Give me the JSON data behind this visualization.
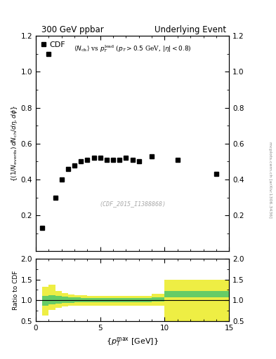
{
  "title_left": "300 GeV ppbar",
  "title_right": "Underlying Event",
  "watermark": "(CDF_2015_I1388868)",
  "side_label": "mcplots.cern.ch [arXiv:1306.3436]",
  "ylabel": "((1/N_{events}) dN_{ch}/dη, dϕ)",
  "ratio_ylabel": "Ratio to CDF",
  "data_x": [
    0.5,
    1.0,
    1.5,
    2.0,
    2.5,
    3.0,
    3.5,
    4.0,
    4.5,
    5.0,
    5.5,
    6.0,
    6.5,
    7.0,
    7.5,
    8.0,
    9.0,
    11.0,
    14.0
  ],
  "data_y": [
    0.13,
    1.1,
    0.3,
    0.4,
    0.46,
    0.48,
    0.5,
    0.51,
    0.52,
    0.52,
    0.51,
    0.51,
    0.51,
    0.52,
    0.51,
    0.5,
    0.53,
    0.51,
    0.43
  ],
  "ylim": [
    0,
    1.2
  ],
  "xlim": [
    0,
    15
  ],
  "ratio_ylim": [
    0.5,
    2.0
  ],
  "green_band_x": [
    0.5,
    1.0,
    1.5,
    2.0,
    2.5,
    3.0,
    3.5,
    4.0,
    4.5,
    5.0,
    5.5,
    6.0,
    6.5,
    7.0,
    7.5,
    8.0,
    9.0,
    10.0,
    15.0
  ],
  "green_band_lo": [
    0.87,
    0.91,
    0.93,
    0.94,
    0.94,
    0.95,
    0.95,
    0.96,
    0.96,
    0.96,
    0.96,
    0.96,
    0.96,
    0.96,
    0.96,
    0.96,
    0.97,
    1.07,
    1.07
  ],
  "green_band_hi": [
    1.1,
    1.12,
    1.1,
    1.09,
    1.08,
    1.07,
    1.06,
    1.06,
    1.05,
    1.05,
    1.05,
    1.05,
    1.05,
    1.05,
    1.05,
    1.06,
    1.08,
    1.22,
    1.22
  ],
  "yellow_band_x": [
    0.5,
    1.0,
    1.5,
    2.0,
    2.5,
    3.0,
    3.5,
    4.0,
    4.5,
    5.0,
    5.5,
    6.0,
    6.5,
    7.0,
    7.5,
    8.0,
    9.0,
    10.0,
    15.0
  ],
  "yellow_band_lo": [
    0.63,
    0.78,
    0.83,
    0.86,
    0.87,
    0.88,
    0.88,
    0.88,
    0.88,
    0.88,
    0.88,
    0.88,
    0.88,
    0.88,
    0.88,
    0.88,
    0.88,
    0.5,
    0.5
  ],
  "yellow_band_hi": [
    1.32,
    1.37,
    1.22,
    1.17,
    1.14,
    1.13,
    1.12,
    1.11,
    1.1,
    1.1,
    1.1,
    1.1,
    1.1,
    1.1,
    1.1,
    1.11,
    1.15,
    1.5,
    1.5
  ],
  "yticks_main": [
    0.2,
    0.4,
    0.6,
    0.8,
    1.0,
    1.2
  ],
  "xticks": [
    0,
    5,
    10,
    15
  ],
  "ratio_yticks": [
    0.5,
    1.0,
    1.5,
    2.0
  ],
  "legend_label": "CDF",
  "marker_color": "black",
  "marker_style": "s",
  "marker_size": 4,
  "green_color": "#66cc66",
  "yellow_color": "#eeee44",
  "bg_color": "#ffffff"
}
